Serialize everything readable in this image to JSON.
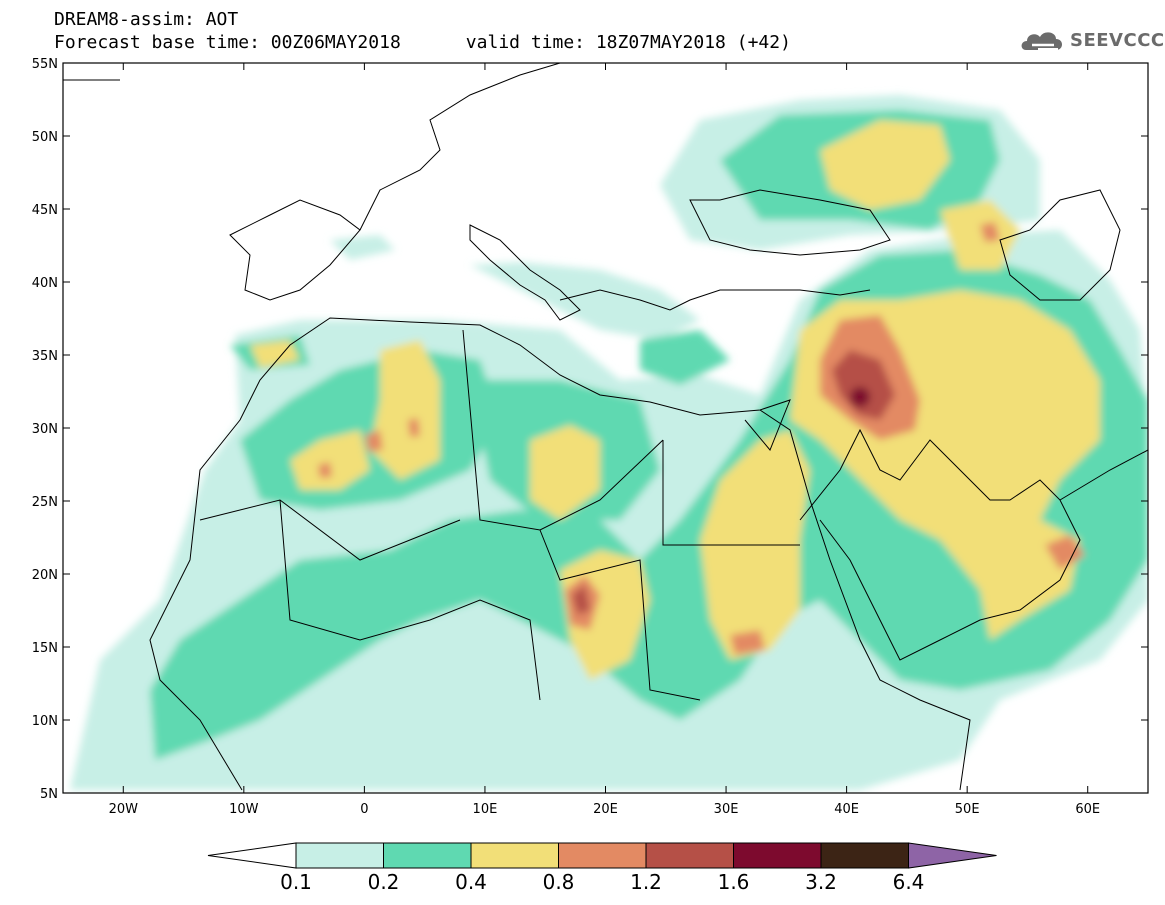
{
  "header": {
    "line1": "DREAM8-assim: AOT",
    "line2": "Forecast base time: 00Z06MAY2018      valid time: 18Z07MAY2018 (+42)"
  },
  "brand": {
    "name": "SEEVCCC",
    "icon": "cloud-logo-icon"
  },
  "map": {
    "variable": "AOT",
    "lon_range": [
      -25,
      65
    ],
    "lat_range": [
      5,
      55
    ],
    "lat_ticks": [
      "55N",
      "50N",
      "45N",
      "40N",
      "35N",
      "30N",
      "25N",
      "20N",
      "15N",
      "10N",
      "5N"
    ],
    "lon_ticks": [
      "20W",
      "10W",
      "0",
      "10E",
      "20E",
      "30E",
      "40E",
      "50E",
      "60E"
    ]
  },
  "colorbar": {
    "labels": [
      "0.1",
      "0.2",
      "0.4",
      "0.8",
      "1.2",
      "1.6",
      "3.2",
      "6.4"
    ],
    "colors": [
      "#ffffff",
      "#c7efe6",
      "#5fd9b1",
      "#f2df78",
      "#e38a63",
      "#b55047",
      "#7d0a2e",
      "#3c2415",
      "#8e64a6"
    ]
  }
}
